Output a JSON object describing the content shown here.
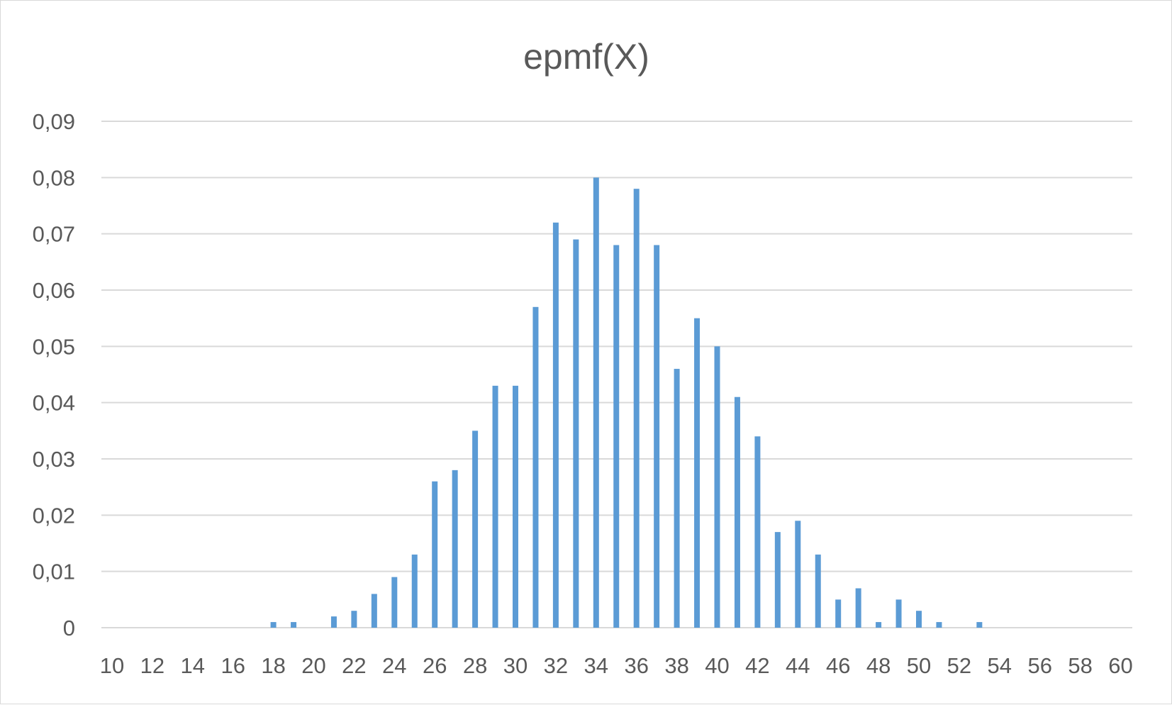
{
  "chart_data": {
    "type": "bar",
    "title": "epmf(X)",
    "xlabel": "",
    "ylabel": "",
    "x": [
      10,
      11,
      12,
      13,
      14,
      15,
      16,
      17,
      18,
      19,
      20,
      21,
      22,
      23,
      24,
      25,
      26,
      27,
      28,
      29,
      30,
      31,
      32,
      33,
      34,
      35,
      36,
      37,
      38,
      39,
      40,
      41,
      42,
      43,
      44,
      45,
      46,
      47,
      48,
      49,
      50,
      51,
      52,
      53,
      54,
      55,
      56,
      57,
      58,
      59,
      60
    ],
    "values": [
      0,
      0,
      0,
      0,
      0,
      0,
      0,
      0,
      0.001,
      0.001,
      0,
      0.002,
      0.003,
      0.006,
      0.009,
      0.013,
      0.026,
      0.028,
      0.035,
      0.043,
      0.043,
      0.057,
      0.072,
      0.069,
      0.08,
      0.068,
      0.078,
      0.068,
      0.046,
      0.055,
      0.05,
      0.041,
      0.034,
      0.017,
      0.019,
      0.013,
      0.005,
      0.007,
      0.001,
      0.005,
      0.003,
      0.001,
      0,
      0.001,
      0,
      0,
      0,
      0,
      0,
      0,
      0
    ],
    "x_tick_labels": [
      "10",
      "12",
      "14",
      "16",
      "18",
      "20",
      "22",
      "24",
      "26",
      "28",
      "30",
      "32",
      "34",
      "36",
      "38",
      "40",
      "42",
      "44",
      "46",
      "48",
      "50",
      "52",
      "54",
      "56",
      "58",
      "60"
    ],
    "y_tick_labels": [
      "0",
      "0,01",
      "0,02",
      "0,03",
      "0,04",
      "0,05",
      "0,06",
      "0,07",
      "0,08",
      "0,09"
    ],
    "ylim": [
      0,
      0.09
    ],
    "grid": true,
    "legend": "none",
    "bar_color": "#5b9bd5",
    "grid_color": "#d9d9d9",
    "text_color": "#595959"
  }
}
